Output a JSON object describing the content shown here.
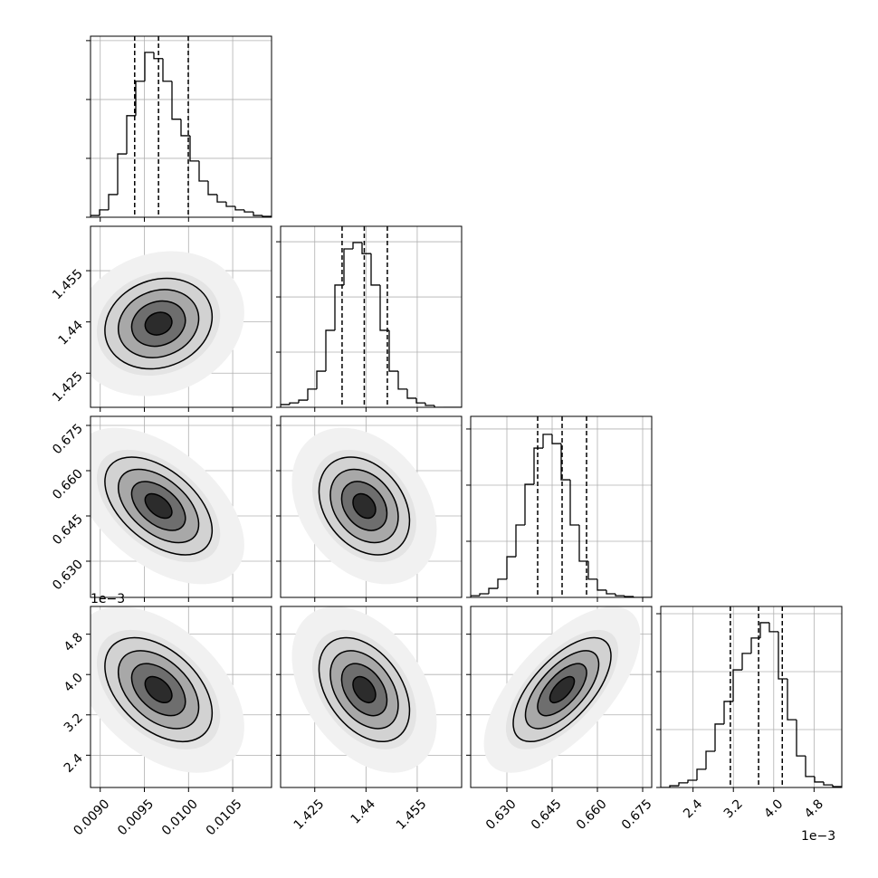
{
  "chart_data": {
    "type": "corner",
    "grid": true,
    "color": "#000000",
    "offset_label": "1e−3",
    "parameters": [
      {
        "lim": [
          0.00889,
          0.01094
        ],
        "ticks": [
          {
            "value": 0.009,
            "label": "0.0090"
          },
          {
            "value": 0.0095,
            "label": "0.0095"
          },
          {
            "value": 0.01,
            "label": "0.0100"
          },
          {
            "value": 0.0105,
            "label": "0.0105"
          }
        ],
        "quantiles": [
          0.00939,
          0.00966,
          0.009997
        ],
        "bins": [
          0.00889,
          0.0089925,
          0.009095,
          0.0091975,
          0.0093,
          0.0094025,
          0.009505,
          0.0096075,
          0.00971,
          0.0098125,
          0.009915,
          0.0100175,
          0.01012,
          0.0102225,
          0.010325,
          0.0104275,
          0.01053,
          0.0106325,
          0.010735,
          0.0108375,
          0.01094
        ],
        "counts": [
          6,
          25,
          77,
          215,
          345,
          462,
          560,
          539,
          462,
          333,
          277,
          191,
          123,
          77,
          52,
          37,
          25,
          18,
          6,
          3
        ],
        "hist_ylim": [
          0,
          615
        ],
        "hist_yticks": [
          0,
          200,
          400,
          600
        ]
      },
      {
        "lim": [
          1.415,
          1.468
        ],
        "ticks": [
          1.425,
          1.44,
          1.455
        ],
        "quantiles": [
          1.433,
          1.4395,
          1.44625
        ],
        "bins": [
          1.415,
          1.41765,
          1.4203,
          1.42295,
          1.4256,
          1.42825,
          1.4309,
          1.43355,
          1.4362,
          1.43885,
          1.4415,
          1.44415,
          1.4468,
          1.44945,
          1.4521,
          1.45475,
          1.4574,
          1.46005,
          1.4627,
          1.46535,
          1.468
        ],
        "counts": [
          10,
          16,
          26,
          66,
          131,
          279,
          443,
          574,
          597,
          557,
          443,
          279,
          131,
          66,
          33,
          16,
          7,
          0,
          0,
          0
        ],
        "hist_ylim": [
          0,
          656
        ],
        "hist_yticks": [
          0,
          200,
          400,
          600
        ]
      },
      {
        "lim": [
          0.618,
          0.678
        ],
        "ticks": [
          {
            "value": 0.63,
            "label": "0.630"
          },
          0.645,
          {
            "value": 0.66,
            "label": "0.660"
          },
          0.675
        ],
        "quantiles": [
          0.6402,
          0.6483,
          0.6564
        ],
        "bins": [
          0.618,
          0.621,
          0.624,
          0.627,
          0.63,
          0.633,
          0.636,
          0.639,
          0.642,
          0.645,
          0.648,
          0.651,
          0.654,
          0.657,
          0.66,
          0.663,
          0.666,
          0.669,
          0.672,
          0.675,
          0.678
        ],
        "counts": [
          6,
          13,
          32,
          65,
          145,
          258,
          403,
          532,
          581,
          548,
          419,
          258,
          129,
          65,
          26,
          13,
          6,
          3,
          0,
          0
        ],
        "hist_ylim": [
          0,
          645
        ],
        "hist_yticks": [
          0,
          200,
          400,
          600
        ]
      },
      {
        "lim": [
          1.76,
          5.35
        ],
        "ticks": [
          2.4,
          3.2,
          {
            "value": 4,
            "label": "4.0"
          },
          4.8
        ],
        "quantiles": [
          3.14,
          3.7,
          4.17
        ],
        "bins": [
          1.76,
          1.9395,
          2.119,
          2.2985,
          2.478,
          2.6575,
          2.837,
          3.0165,
          3.196,
          3.3755,
          3.555,
          3.7345,
          3.914,
          4.0935,
          4.273,
          4.4525,
          4.632,
          4.8115,
          4.991,
          5.1705,
          5.35
        ],
        "counts": [
          0,
          6,
          16,
          25,
          63,
          125,
          219,
          297,
          406,
          463,
          516,
          569,
          538,
          375,
          234,
          109,
          38,
          19,
          9,
          3
        ],
        "hist_ylim": [
          0,
          625
        ],
        "hist_yticks": [
          0,
          200,
          400,
          600
        ]
      }
    ],
    "correlations": [
      {
        "pair": [
          0,
          1
        ],
        "value": 0.15
      },
      {
        "pair": [
          0,
          2
        ],
        "value": -0.5
      },
      {
        "pair": [
          1,
          2
        ],
        "value": -0.3
      },
      {
        "pair": [
          0,
          3
        ],
        "value": -0.45
      },
      {
        "pair": [
          1,
          3
        ],
        "value": -0.4
      },
      {
        "pair": [
          2,
          3
        ],
        "value": 0.65
      }
    ]
  }
}
